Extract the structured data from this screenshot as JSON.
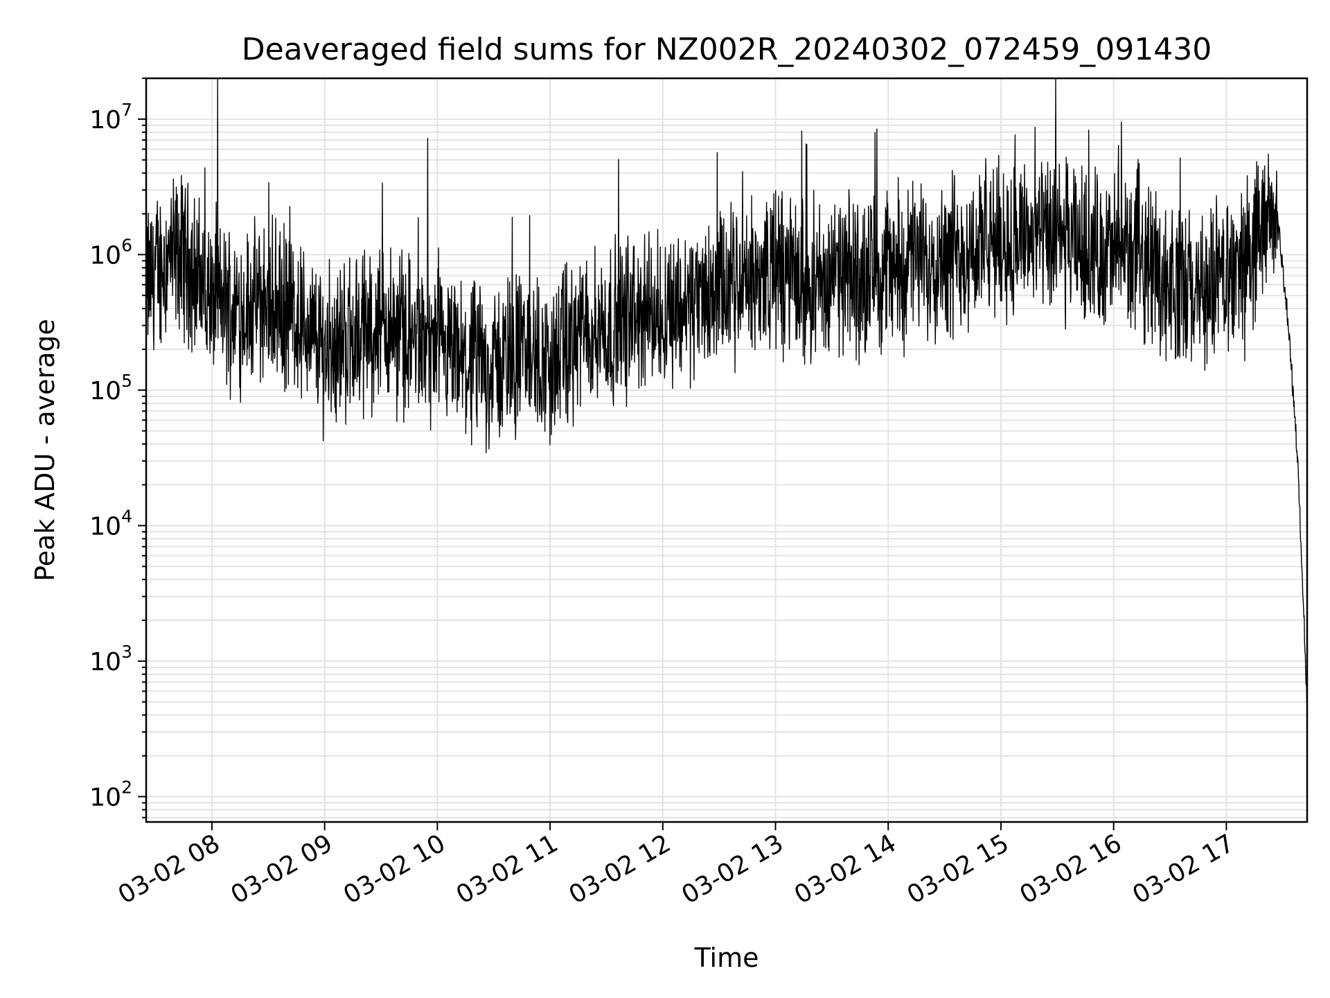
{
  "chart_data": {
    "type": "line",
    "title": "Deaveraged field sums for NZ002R_20240302_072459_091430",
    "xlabel": "Time",
    "ylabel": "Peak ADU - average",
    "y_scale": "log",
    "ylim": [
      65,
      20000000
    ],
    "xlim": [
      "2024-03-02 07:25",
      "2024-03-02 17:43"
    ],
    "grid": true,
    "line_color": "#000000",
    "grid_color": "#e3e3e3",
    "x_ticks": [
      {
        "t": "2024-03-02 08:00",
        "label": "03-02 08"
      },
      {
        "t": "2024-03-02 09:00",
        "label": "03-02 09"
      },
      {
        "t": "2024-03-02 10:00",
        "label": "03-02 10"
      },
      {
        "t": "2024-03-02 11:00",
        "label": "03-02 11"
      },
      {
        "t": "2024-03-02 12:00",
        "label": "03-02 12"
      },
      {
        "t": "2024-03-02 13:00",
        "label": "03-02 13"
      },
      {
        "t": "2024-03-02 14:00",
        "label": "03-02 14"
      },
      {
        "t": "2024-03-02 15:00",
        "label": "03-02 15"
      },
      {
        "t": "2024-03-02 16:00",
        "label": "03-02 16"
      },
      {
        "t": "2024-03-02 17:00",
        "label": "03-02 17"
      }
    ],
    "y_ticks": [
      {
        "value": 100,
        "base": "10",
        "exp": "2"
      },
      {
        "value": 1000,
        "base": "10",
        "exp": "3"
      },
      {
        "value": 10000,
        "base": "10",
        "exp": "4"
      },
      {
        "value": 100000,
        "base": "10",
        "exp": "5"
      },
      {
        "value": 1000000,
        "base": "10",
        "exp": "6"
      },
      {
        "value": 10000000,
        "base": "10",
        "exp": "7"
      }
    ],
    "series": [
      {
        "x": [
          "2024-03-02 07:25",
          "2024-03-02 07:35",
          "2024-03-02 07:45",
          "2024-03-02 08:00",
          "2024-03-02 08:15",
          "2024-03-02 08:30",
          "2024-03-02 08:45",
          "2024-03-02 09:00",
          "2024-03-02 09:15",
          "2024-03-02 09:30",
          "2024-03-02 09:45",
          "2024-03-02 10:00",
          "2024-03-02 10:15",
          "2024-03-02 10:30",
          "2024-03-02 10:45",
          "2024-03-02 11:00",
          "2024-03-02 11:15",
          "2024-03-02 11:30",
          "2024-03-02 11:45",
          "2024-03-02 12:00",
          "2024-03-02 12:15",
          "2024-03-02 12:30",
          "2024-03-02 12:45",
          "2024-03-02 13:00",
          "2024-03-02 13:15",
          "2024-03-02 13:30",
          "2024-03-02 13:45",
          "2024-03-02 14:00",
          "2024-03-02 14:15",
          "2024-03-02 14:30",
          "2024-03-02 14:45",
          "2024-03-02 15:00",
          "2024-03-02 15:15",
          "2024-03-02 15:30",
          "2024-03-02 15:45",
          "2024-03-02 16:00",
          "2024-03-02 16:15",
          "2024-03-02 16:30",
          "2024-03-02 16:45",
          "2024-03-02 17:00",
          "2024-03-02 17:10",
          "2024-03-02 17:20",
          "2024-03-02 17:27",
          "2024-03-02 17:33",
          "2024-03-02 17:38",
          "2024-03-02 17:43"
        ],
        "values": [
          600000,
          900000,
          1000000,
          450000,
          400000,
          450000,
          350000,
          200000,
          250000,
          300000,
          250000,
          180000,
          150000,
          150000,
          200000,
          150000,
          250000,
          300000,
          350000,
          400000,
          450000,
          550000,
          600000,
          800000,
          600000,
          650000,
          700000,
          800000,
          900000,
          1000000,
          1100000,
          1300000,
          1400000,
          1200000,
          1100000,
          1000000,
          1100000,
          600000,
          500000,
          700000,
          800000,
          1500000,
          2000000,
          300000,
          30000,
          500
        ]
      }
    ]
  }
}
